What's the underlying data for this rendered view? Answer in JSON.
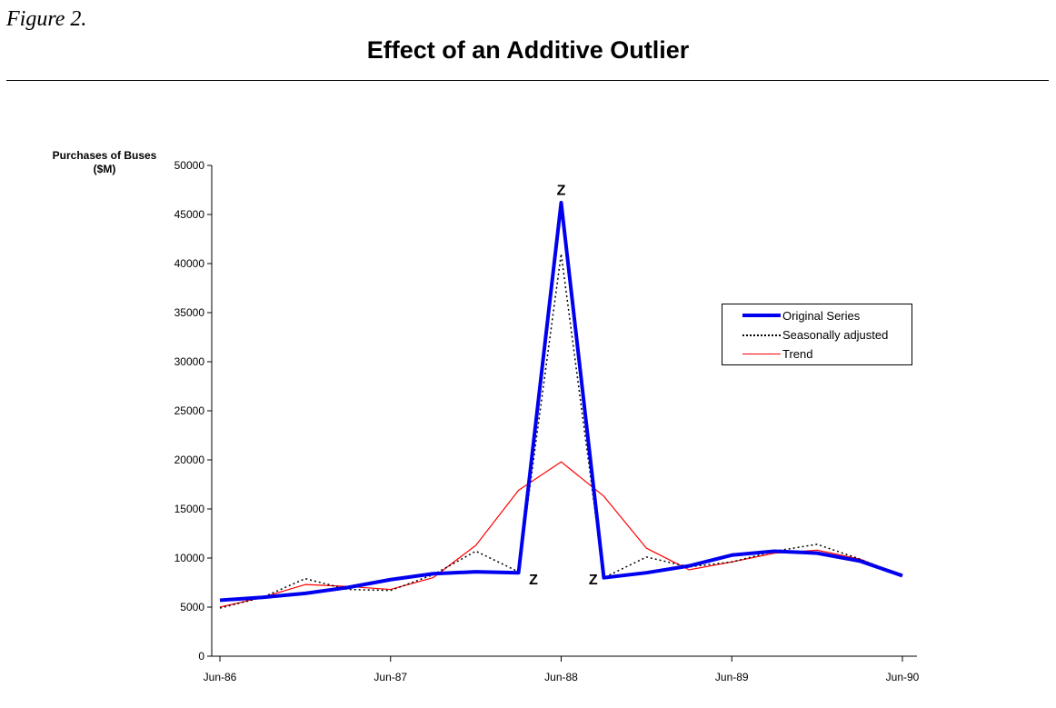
{
  "figure_label": "Figure 2.",
  "chart_data": {
    "type": "line",
    "title": "Effect of an Additive Outlier",
    "ylabel_lines": [
      "Purchases of Buses",
      "($M)"
    ],
    "xlabel": "",
    "ylim": [
      0,
      50000
    ],
    "yticks": [
      "0",
      "5000",
      "10000",
      "15000",
      "20000",
      "25000",
      "30000",
      "35000",
      "40000",
      "45000",
      "50000"
    ],
    "x_tick_labels": [
      "Jun-86",
      "Jun-87",
      "Jun-88",
      "Jun-89",
      "Jun-90"
    ],
    "x_tick_quarters": [
      0,
      4,
      8,
      12,
      16
    ],
    "x_quarters": [
      0,
      1,
      2,
      3,
      4,
      5,
      6,
      7,
      8,
      9,
      10,
      11,
      12,
      13,
      14,
      15,
      16
    ],
    "grid": false,
    "legend_position": "right",
    "series": [
      {
        "name": "Original Series",
        "color": "#0000ee",
        "style": "thick-solid",
        "values": [
          5700,
          6000,
          6400,
          7000,
          7800,
          8400,
          8600,
          8500,
          46200,
          8000,
          8500,
          9200,
          10300,
          10700,
          10500,
          9700,
          8200
        ]
      },
      {
        "name": "Seasonally adjusted",
        "color": "#000000",
        "style": "dotted",
        "values": [
          4900,
          6000,
          7900,
          6800,
          6700,
          8300,
          10700,
          8600,
          41000,
          8000,
          10100,
          9100,
          9600,
          10700,
          11400,
          9900,
          8200
        ]
      },
      {
        "name": "Trend",
        "color": "#ff0000",
        "style": "thin-solid",
        "values": [
          5000,
          6000,
          7300,
          7100,
          6800,
          8000,
          11300,
          16900,
          19800,
          16300,
          11000,
          8800,
          9600,
          10500,
          10800,
          9900,
          8200
        ]
      }
    ],
    "annotations": [
      {
        "text": "Z",
        "x": 8,
        "y": 47000
      },
      {
        "text": "Z",
        "x": 7.35,
        "y": 7300
      },
      {
        "text": "Z",
        "x": 8.75,
        "y": 7300
      }
    ]
  }
}
